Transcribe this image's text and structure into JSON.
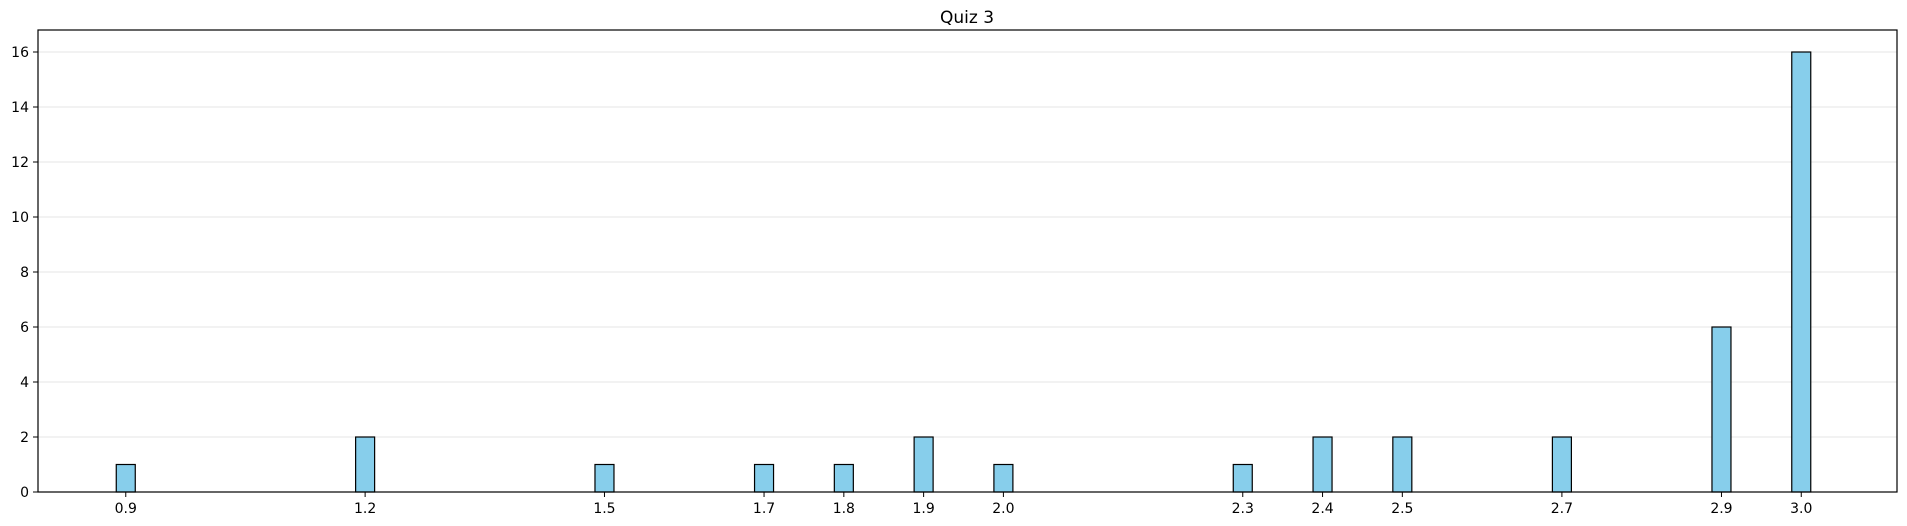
{
  "chart_data": {
    "type": "bar",
    "title": "Quiz 3",
    "xlabel": "",
    "ylabel": "",
    "x": [
      0.9,
      1.2,
      1.5,
      1.7,
      1.8,
      1.9,
      2.0,
      2.3,
      2.4,
      2.5,
      2.7,
      2.9,
      3.0
    ],
    "x_tick_labels": [
      "0.9",
      "1.2",
      "1.5",
      "1.7",
      "1.8",
      "1.9",
      "2.0",
      "2.3",
      "2.4",
      "2.5",
      "2.7",
      "2.9",
      "3.0"
    ],
    "values": [
      1,
      2,
      1,
      1,
      1,
      2,
      1,
      1,
      2,
      2,
      2,
      6,
      16
    ],
    "y_ticks": [
      0,
      2,
      4,
      6,
      8,
      10,
      12,
      14,
      16
    ],
    "xlim": [
      0.79,
      3.12
    ],
    "ylim": [
      0,
      16.8
    ],
    "grid": "y-axis",
    "bar_color": "#87ceeb",
    "edge_color": "#000000",
    "grid_color": "#e6e6e6"
  }
}
